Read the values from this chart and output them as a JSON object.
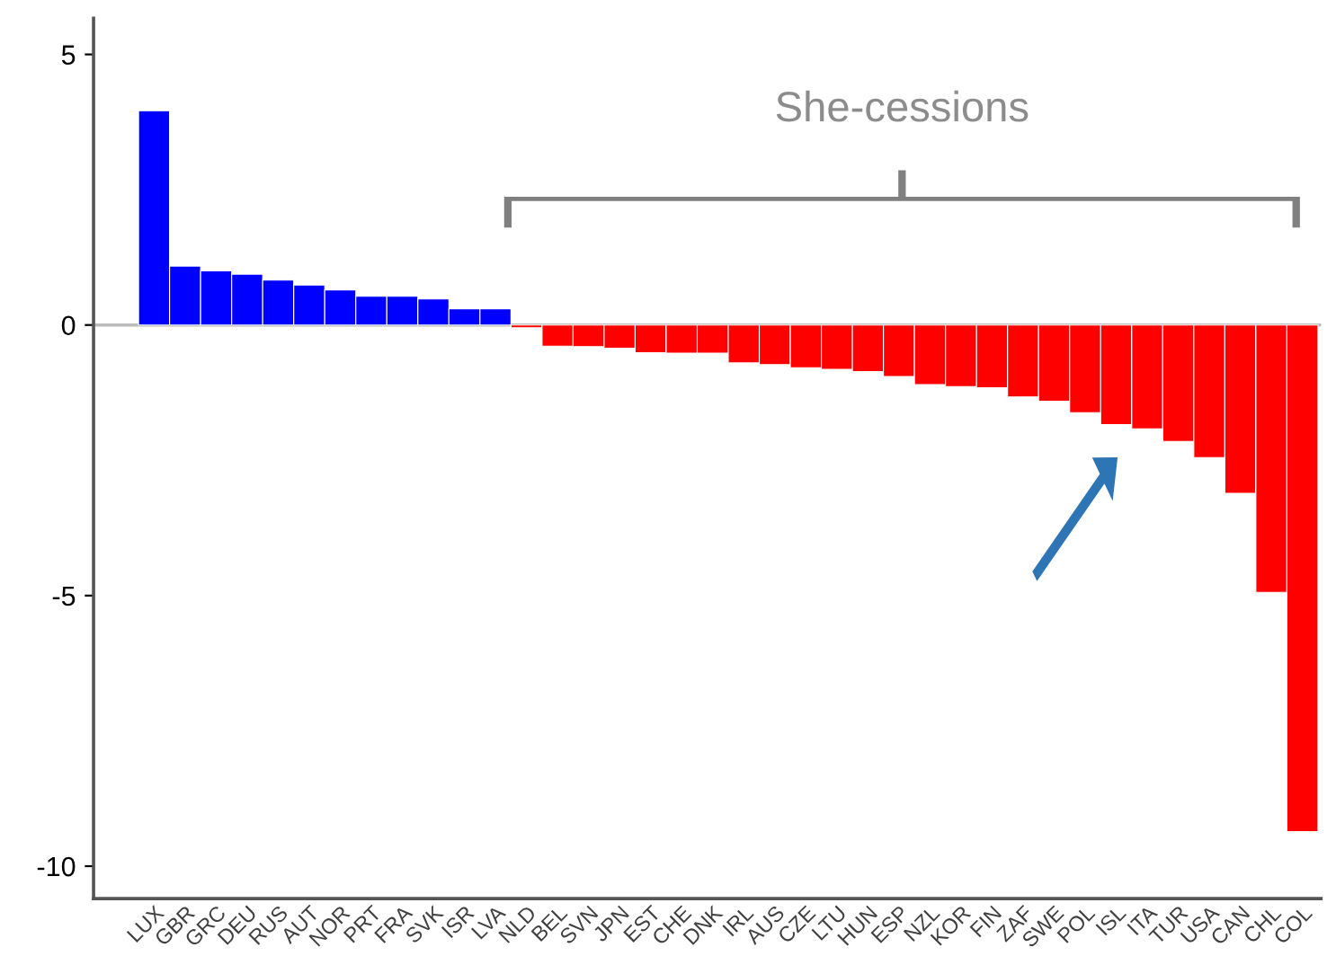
{
  "chart_data": {
    "type": "bar",
    "categories": [
      "LUX",
      "GBR",
      "GRC",
      "DEU",
      "RUS",
      "AUT",
      "NOR",
      "PRT",
      "FRA",
      "SVK",
      "ISR",
      "LVA",
      "NLD",
      "BEL",
      "SVN",
      "JPN",
      "EST",
      "CHE",
      "DNK",
      "IRL",
      "AUS",
      "CZE",
      "LTU",
      "HUN",
      "ESP",
      "NZL",
      "KOR",
      "FIN",
      "ZAF",
      "SWE",
      "POL",
      "ISL",
      "ITA",
      "TUR",
      "USA",
      "CAN",
      "CHL",
      "COL"
    ],
    "values": [
      3.96,
      1.09,
      1.0,
      0.94,
      0.83,
      0.74,
      0.65,
      0.53,
      0.53,
      0.48,
      0.3,
      0.3,
      -0.05,
      -0.39,
      -0.4,
      -0.43,
      -0.51,
      -0.52,
      -0.52,
      -0.7,
      -0.73,
      -0.79,
      -0.82,
      -0.86,
      -0.95,
      -1.1,
      -1.14,
      -1.16,
      -1.33,
      -1.41,
      -1.62,
      -1.84,
      -1.92,
      -2.15,
      -2.45,
      -3.11,
      -4.94,
      -9.36
    ],
    "colors": [
      "#0000ff",
      "#0000ff",
      "#0000ff",
      "#0000ff",
      "#0000ff",
      "#0000ff",
      "#0000ff",
      "#0000ff",
      "#0000ff",
      "#0000ff",
      "#0000ff",
      "#0000ff",
      "#ff0000",
      "#ff0000",
      "#ff0000",
      "#ff0000",
      "#ff0000",
      "#ff0000",
      "#ff0000",
      "#ff0000",
      "#ff0000",
      "#ff0000",
      "#ff0000",
      "#ff0000",
      "#ff0000",
      "#ff0000",
      "#ff0000",
      "#ff0000",
      "#ff0000",
      "#ff0000",
      "#ff0000",
      "#ff0000",
      "#ff0000",
      "#ff0000",
      "#ff0000",
      "#ff0000",
      "#ff0000",
      "#ff0000"
    ],
    "ylim": [
      -10.6,
      5.67
    ],
    "yticks": [
      -10,
      -5,
      0,
      5
    ],
    "ref_lines": [
      {
        "axis": "y",
        "value": 0,
        "color": "#bbbbbb"
      }
    ],
    "annotations": [
      "She-cessions"
    ],
    "grid": false,
    "legend": false
  }
}
